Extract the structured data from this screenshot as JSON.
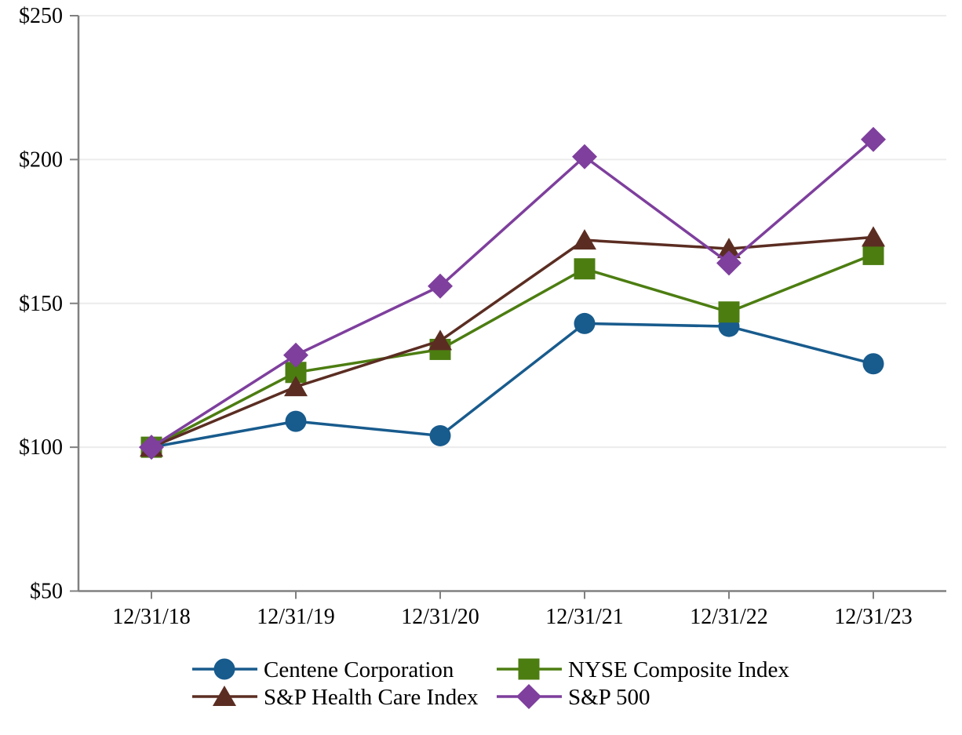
{
  "page": {
    "background_color": "#ffffff",
    "text_color": "#000000"
  },
  "chart_data": {
    "type": "line",
    "title": "",
    "xlabel": "",
    "ylabel": "",
    "x": [
      "12/31/18",
      "12/31/19",
      "12/31/20",
      "12/31/21",
      "12/31/22",
      "12/31/23"
    ],
    "series": [
      {
        "name": "Centene Corporation",
        "values": [
          100,
          109,
          104,
          143,
          142,
          129
        ],
        "color": "#185B8D",
        "marker": "circle"
      },
      {
        "name": "NYSE Composite Index",
        "values": [
          100,
          126,
          134,
          162,
          147,
          167
        ],
        "color": "#4C7D11",
        "marker": "square"
      },
      {
        "name": "S&P Health Care Index",
        "values": [
          100,
          121,
          137,
          172,
          169,
          173
        ],
        "color": "#5B2D22",
        "marker": "triangle"
      },
      {
        "name": "S&P 500",
        "values": [
          100,
          132,
          156,
          201,
          164,
          207
        ],
        "color": "#7E3F9D",
        "marker": "diamond"
      }
    ],
    "ylim": [
      50,
      250
    ],
    "y_ticks": [
      {
        "value": 50,
        "label": "$50"
      },
      {
        "value": 100,
        "label": "$100"
      },
      {
        "value": 150,
        "label": "$150"
      },
      {
        "value": 200,
        "label": "$200"
      },
      {
        "value": 250,
        "label": "$250"
      }
    ],
    "grid": true,
    "grid_color": "#ECECEC",
    "axis_color": "#808080",
    "legend_position": "bottom",
    "legend_layout": {
      "rows": [
        [
          "Centene Corporation",
          "NYSE Composite Index"
        ],
        [
          "S&P Health Care Index",
          "S&P 500"
        ]
      ]
    }
  }
}
